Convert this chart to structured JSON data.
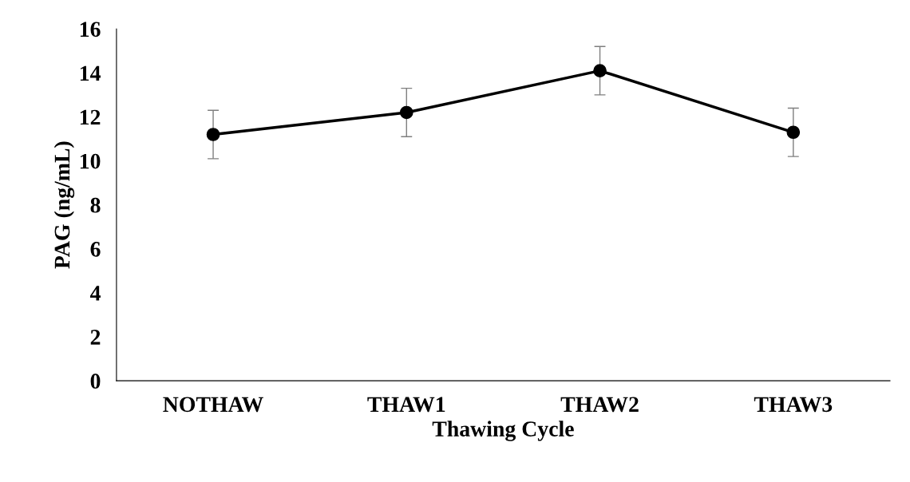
{
  "chart_data": {
    "type": "line",
    "xlabel": "Thawing Cycle",
    "ylabel": "PAG (ng/mL)",
    "categories": [
      "NOTHAW",
      "THAW1",
      "THAW2",
      "THAW3"
    ],
    "series": [
      {
        "color": "#000000",
        "values": [
          11.2,
          12.2,
          14.1,
          11.3
        ],
        "errors": [
          1.1,
          1.1,
          1.1,
          1.1
        ]
      }
    ],
    "ylim": [
      0,
      16
    ],
    "yticks": [
      0,
      2,
      4,
      6,
      8,
      10,
      12,
      14,
      16
    ],
    "grid": false,
    "legend": false,
    "marker": "circle",
    "line_style": "solid"
  }
}
